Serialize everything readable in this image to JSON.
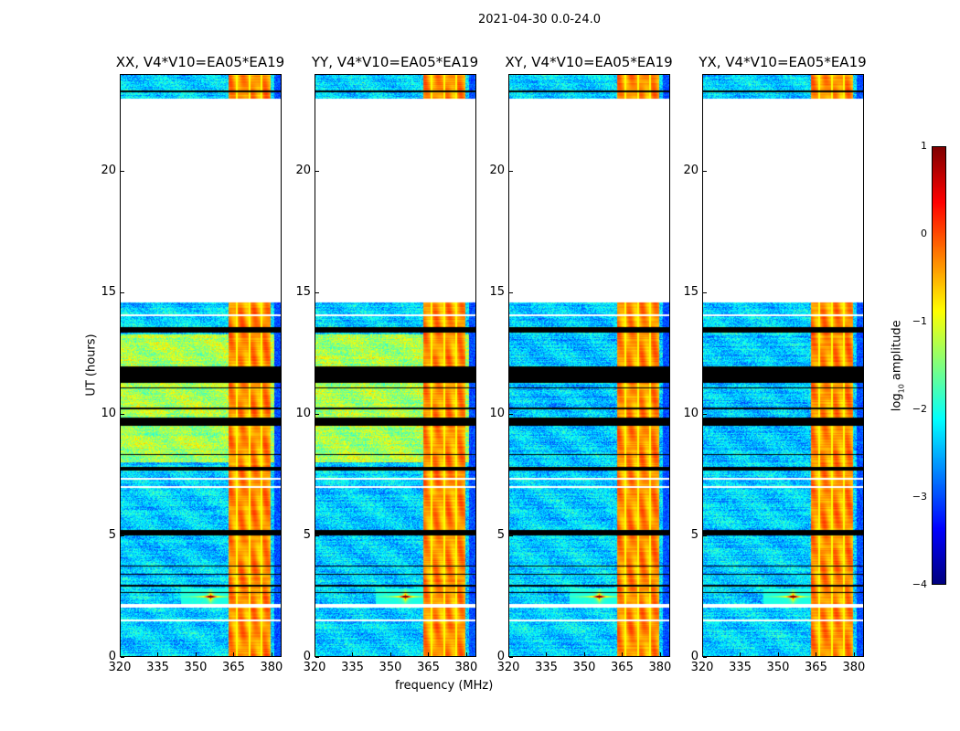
{
  "chart_data": {
    "type": "heatmap",
    "title": "2021-04-30 0.0-24.0",
    "xlabel": "frequency (MHz)",
    "ylabel": "UT (hours)",
    "xlim": [
      320,
      384
    ],
    "ylim": [
      0,
      24
    ],
    "xticks": [
      "320",
      "335",
      "350",
      "365",
      "380"
    ],
    "xtick_values": [
      320,
      335,
      350,
      365,
      380
    ],
    "yticks": [
      "0",
      "5",
      "10",
      "15",
      "20"
    ],
    "ytick_values": [
      0,
      5,
      10,
      15,
      20
    ],
    "panels": [
      {
        "title": "XX, V4*V10=EA05*EA19",
        "midband_level": -1.3
      },
      {
        "title": "YY, V4*V10=EA05*EA19",
        "midband_level": -1.3
      },
      {
        "title": "XY, V4*V10=EA05*EA19",
        "midband_level": -2.4
      },
      {
        "title": "YX, V4*V10=EA05*EA19",
        "midband_level": -2.4
      }
    ],
    "no_data_interval_hours": [
      14.6,
      22.9
    ],
    "flagged_rows_hours": [
      [
        23.3,
        23.35
      ],
      [
        13.35,
        13.6
      ],
      [
        11.3,
        11.95
      ],
      [
        11.05,
        11.1
      ],
      [
        10.2,
        10.25
      ],
      [
        9.5,
        9.85
      ],
      [
        8.3,
        8.35
      ],
      [
        7.65,
        7.8
      ],
      [
        5.0,
        5.2
      ],
      [
        3.7,
        3.75
      ],
      [
        3.35,
        3.4
      ],
      [
        2.85,
        2.95
      ],
      [
        2.6,
        2.65
      ]
    ],
    "blank_rows_hours": [
      [
        22.9,
        23.0
      ],
      [
        14.05,
        14.1
      ],
      [
        7.3,
        7.35
      ],
      [
        6.95,
        7.0
      ],
      [
        2.0,
        2.15
      ],
      [
        1.45,
        1.5
      ]
    ],
    "strong_band_mhz": [
      363,
      380
    ],
    "rfi_spike": {
      "freq_mhz": 356,
      "time_hours": 2.45
    },
    "colorbar": {
      "label": "log10 amplitude",
      "label_main": "log",
      "label_sub": "10",
      "label_rest": " amplitude",
      "range": [
        -4,
        1
      ],
      "ticks": [
        "1",
        "0",
        "−1",
        "−2",
        "−3",
        "−4"
      ],
      "tick_values": [
        1,
        0,
        -1,
        -2,
        -3,
        -4
      ],
      "colormap": "jet"
    }
  }
}
